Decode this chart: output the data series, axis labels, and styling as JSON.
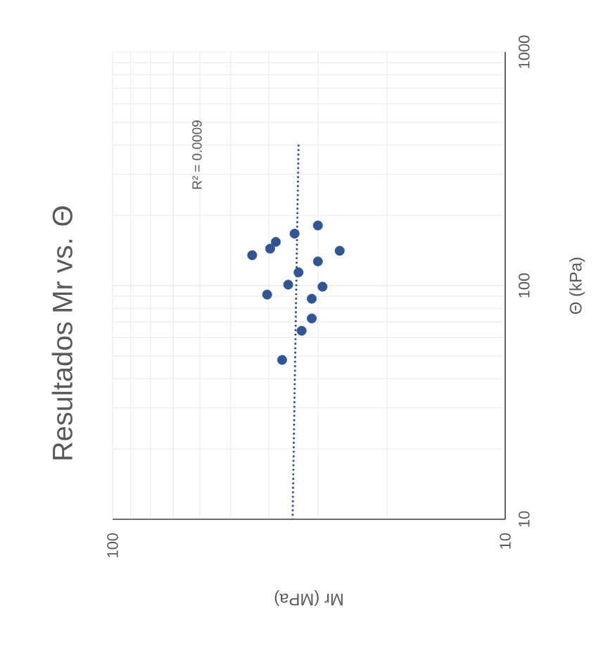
{
  "chart_data": {
    "type": "scatter",
    "title": "Resultados Mr vs. Θ",
    "xlabel": "Mr (MPa)",
    "ylabel": "Θ (kPa)",
    "log": "xy",
    "xlim": [
      100,
      10
    ],
    "ylim": [
      10,
      1000
    ],
    "xticks": [
      100,
      10
    ],
    "yticks": [
      10,
      100,
      1000
    ],
    "grid": true,
    "annotations": [
      "R² = 0.0009"
    ],
    "series": [
      {
        "marker": "circle",
        "color": "#2f5597",
        "x": [
          30.0,
          34.4,
          38.4,
          39.7,
          44.1,
          26.4,
          30.0,
          33.6,
          35.7,
          29.2,
          40.4,
          31.1,
          31.1,
          33.0,
          37.0
        ],
        "values": [
          181,
          167,
          154,
          144,
          135,
          141,
          127,
          114,
          101,
          99,
          91.6,
          87.9,
          72.4,
          64.1,
          48.1
        ]
      },
      {
        "type": "line",
        "marker": "none",
        "line_style": "dotted",
        "color": "#2f5597",
        "x": [
          34.8,
          33.6
        ],
        "values": [
          10,
          407
        ]
      }
    ]
  }
}
